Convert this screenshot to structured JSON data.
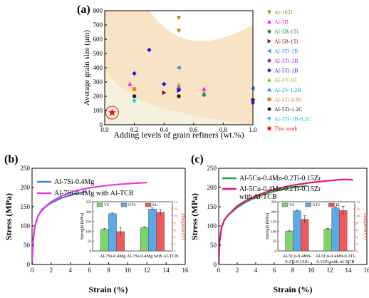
{
  "panels": {
    "a": "(a)",
    "b": "(b)",
    "c": "(c)"
  },
  "chart_data": [
    {
      "id": "a",
      "type": "scatter",
      "xlabel": "Adding levels of grain refiners (wt.%)",
      "ylabel": "Average grain size (μm)",
      "xlim": [
        0.0,
        1.0
      ],
      "ylim": [
        0,
        800
      ],
      "xticks": [
        "0.0",
        "0.2",
        "0.4",
        "0.6",
        "0.8",
        "1.0"
      ],
      "yticks": [
        "0",
        "100",
        "200",
        "300",
        "400",
        "500",
        "600",
        "700",
        "800"
      ],
      "legend_position": "right",
      "series": [
        {
          "name": "Al-10Ti",
          "color": "#a08c1c",
          "marker": "triangle-down",
          "points": [
            [
              0.5,
              750
            ],
            [
              0.5,
              660
            ]
          ]
        },
        {
          "name": "Al-3B",
          "color": "#ee22ee",
          "marker": "triangle-up",
          "points": [
            [
              0.17,
              285
            ],
            [
              0.5,
              265
            ],
            [
              0.67,
              250
            ]
          ]
        },
        {
          "name": "Al-3B-1Ti",
          "color": "#2a8c2a",
          "marker": "circle",
          "points": [
            [
              0.67,
              210
            ]
          ]
        },
        {
          "name": "Al-5B-1Ti",
          "color": "#7a1010",
          "marker": "triangle-right",
          "points": [
            [
              0.4,
              225
            ],
            [
              0.5,
              240
            ]
          ]
        },
        {
          "name": "Al-3Ti-1B",
          "color": "#3a8ad8",
          "marker": "triangle-left",
          "points": [
            [
              0.5,
              400
            ],
            [
              1.0,
              255
            ]
          ]
        },
        {
          "name": "Al-3Ti-3B",
          "color": "#8a2be2",
          "marker": "circle",
          "points": [
            [
              1.0,
              155
            ]
          ]
        },
        {
          "name": "Al-5Ti-1B",
          "color": "#1a1ae0",
          "marker": "diamond",
          "points": [
            [
              0.2,
              360
            ],
            [
              0.3,
              525
            ],
            [
              0.4,
              285
            ],
            [
              0.5,
              245
            ],
            [
              1.0,
              175
            ]
          ]
        },
        {
          "name": "Al-3V-1B",
          "color": "#88bb22",
          "marker": "triangle-up",
          "points": [
            [
              0.5,
              280
            ]
          ]
        },
        {
          "name": "Al-3V-1.2B",
          "color": "#16a090",
          "marker": "triangle-up",
          "points": [
            [
              0.67,
              220
            ]
          ]
        },
        {
          "name": "Al-5Ti-0.8C",
          "color": "#f07820",
          "marker": "square",
          "points": [
            [
              0.2,
              250
            ]
          ]
        },
        {
          "name": "Al-5Ti-1.2C",
          "color": "#222222",
          "marker": "circle",
          "points": [
            [
              0.2,
              200
            ],
            [
              0.5,
              200
            ]
          ]
        },
        {
          "name": "Al-3Ti-1B-0.2C",
          "color": "#18c8d8",
          "marker": "triangle-down",
          "points": [
            [
              0.2,
              165
            ]
          ]
        },
        {
          "name": "This work",
          "color": "#ee1111",
          "marker": "star",
          "points": [
            [
              0.05,
              85
            ]
          ]
        }
      ]
    },
    {
      "id": "b",
      "type": "line",
      "xlabel": "Strain (%)",
      "ylabel": "Stress (MPa)",
      "xlim": [
        0,
        16
      ],
      "ylim": [
        0,
        250
      ],
      "xticks": [
        "0",
        "2",
        "4",
        "6",
        "8",
        "10",
        "12",
        "14",
        "16"
      ],
      "yticks": [
        "0",
        "50",
        "100",
        "150",
        "200",
        "250"
      ],
      "legend_position": "top-left",
      "series": [
        {
          "name": "Al-7Si-0.4Mg",
          "color": "#3a7fd5",
          "x": [
            0,
            0.1,
            0.3,
            0.6,
            1,
            1.5,
            2,
            3,
            4,
            5,
            5.6
          ],
          "y": [
            0,
            60,
            100,
            125,
            140,
            152,
            160,
            172,
            180,
            186,
            189
          ]
        },
        {
          "name": "Al-7Si-0.4Mg with Al-TCB",
          "color": "#e63cdc",
          "x": [
            0,
            0.1,
            0.3,
            0.6,
            1,
            2,
            3,
            4,
            5,
            6,
            8,
            10,
            12
          ],
          "y": [
            0,
            60,
            100,
            125,
            142,
            163,
            177,
            187,
            194,
            199,
            206,
            210,
            213
          ]
        }
      ],
      "inset": {
        "type": "bar",
        "ylabel": "Strength (MPa)",
        "ylabel2": "Elongation (%)",
        "ylim": [
          0,
          250
        ],
        "ylim2": [
          0,
          14
        ],
        "yticks": [
          "0",
          "50",
          "100",
          "150",
          "200",
          "250"
        ],
        "yticks2": [
          "0",
          "2",
          "4",
          "6",
          "8",
          "10",
          "12",
          "14"
        ],
        "categories": [
          "Al-7Si-0.4Mg",
          "Al-7Si-0.4Mg with Al-TCB"
        ],
        "series": [
          {
            "name": "YS",
            "color": "#7ed36a",
            "axis": "left",
            "values": [
              110,
              119
            ],
            "errors": [
              4,
              4
            ]
          },
          {
            "name": "UTS",
            "color": "#5aa9e8",
            "axis": "left",
            "values": [
              189,
              213
            ],
            "errors": [
              4,
              5
            ]
          },
          {
            "name": "EL",
            "color": "#ee5a5a",
            "axis": "right",
            "values": [
              5.5,
              11.0
            ],
            "errors": [
              1.2,
              0.8
            ]
          }
        ]
      }
    },
    {
      "id": "c",
      "type": "line",
      "xlabel": "Strain (%)",
      "ylabel": "Stress (MPa)",
      "xlim": [
        0,
        16
      ],
      "ylim": [
        0,
        250
      ],
      "xticks": [
        "0",
        "2",
        "4",
        "6",
        "8",
        "10",
        "12",
        "14",
        "16"
      ],
      "yticks": [
        "0",
        "50",
        "100",
        "150",
        "200",
        "250"
      ],
      "legend_position": "top-left",
      "series": [
        {
          "name": "Al-5Cu-0.4Mn-0.2Ti-0.15Zr",
          "color": "#35a040",
          "x": [
            0,
            0.1,
            0.3,
            0.6,
            1,
            2,
            3,
            4,
            5,
            6,
            7,
            8,
            9,
            9.6
          ],
          "y": [
            0,
            60,
            95,
            115,
            128,
            148,
            163,
            174,
            183,
            190,
            196,
            200,
            203,
            204
          ]
        },
        {
          "name": "Al-5Cu-0.4Mn-0.2Ti-0.15Zr with Al-TCB",
          "color": "#e6157c",
          "x": [
            0,
            0.1,
            0.3,
            0.6,
            1,
            2,
            3,
            4,
            5,
            6,
            8,
            10,
            12,
            13.5,
            14.5
          ],
          "y": [
            0,
            60,
            95,
            115,
            128,
            152,
            167,
            178,
            187,
            195,
            206,
            213,
            218,
            221,
            220
          ]
        }
      ],
      "inset": {
        "type": "bar",
        "ylabel": "Strength (MPa)",
        "ylabel2": "Elongation (%)",
        "ylim": [
          0,
          250
        ],
        "ylim2": [
          0,
          14
        ],
        "yticks": [
          "0",
          "50",
          "100",
          "150",
          "200",
          "250"
        ],
        "yticks2": [
          "0",
          "2",
          "4",
          "6",
          "8",
          "10",
          "12",
          "14"
        ],
        "categories": [
          "Al-5Cu-0.4Mn-0.2Ti-0.15Zr",
          "Al-5Cu-0.4Mn-0.2Ti-0.15Zr with Al-TCB"
        ],
        "category_lines": [
          [
            "Al-5Cu-0.4Mn-",
            "0.2Ti-0.15Zr"
          ],
          [
            "Al-5Cu-0.4Mn-0.2Ti-",
            "0.15Zr with Al-TCB"
          ]
        ],
        "series": [
          {
            "name": "YS",
            "color": "#7ed36a",
            "axis": "left",
            "values": [
              101,
              111
            ],
            "errors": [
              4,
              4
            ]
          },
          {
            "name": "UTS",
            "color": "#5aa9e8",
            "axis": "left",
            "values": [
              204,
              219
            ],
            "errors": [
              4,
              5
            ]
          },
          {
            "name": "EL",
            "color": "#ee5a5a",
            "axis": "right",
            "values": [
              9.0,
              11.5
            ],
            "errors": [
              1.0,
              1.2
            ]
          }
        ]
      }
    }
  ]
}
